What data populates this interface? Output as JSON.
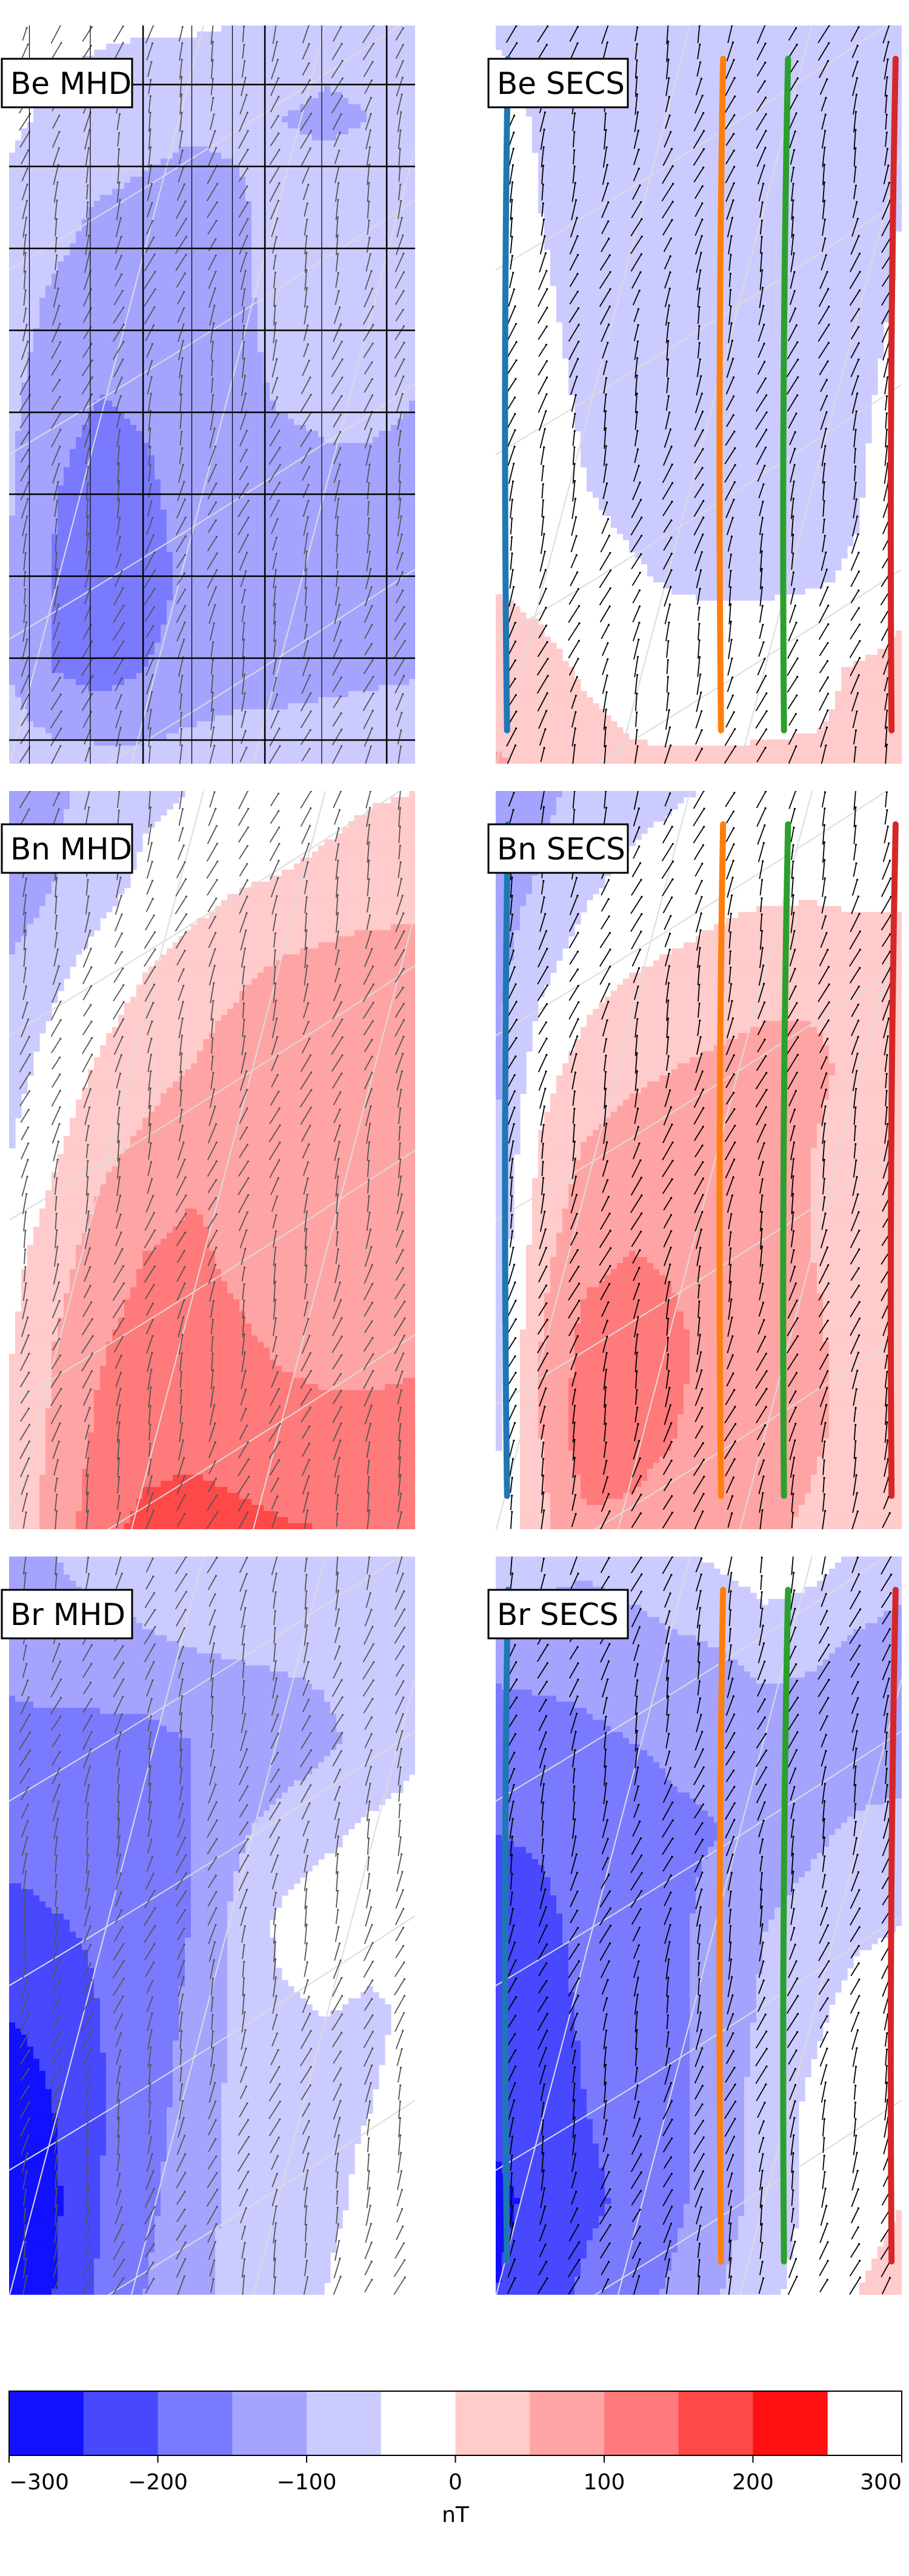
{
  "chart_data": [
    {
      "type": "heatmap",
      "panel": "Be MHD",
      "label": "Be MHD",
      "component": "Be",
      "source": "MHD",
      "level_field": [
        [
          -45,
          -40,
          -45,
          -45,
          -45,
          -50,
          -60,
          -80,
          -80,
          -80
        ],
        [
          -45,
          -55,
          -65,
          -80,
          -90,
          -90,
          -100,
          -110,
          -100,
          -85
        ],
        [
          -55,
          -80,
          -105,
          -115,
          -125,
          -110,
          -80,
          -70,
          -80,
          -85
        ],
        [
          -75,
          -110,
          -125,
          -130,
          -135,
          -120,
          -75,
          -60,
          -70,
          -85
        ],
        [
          -90,
          -125,
          -150,
          -140,
          -130,
          -120,
          -95,
          -90,
          -90,
          -100
        ],
        [
          -95,
          -145,
          -180,
          -160,
          -130,
          -125,
          -120,
          -110,
          -110,
          -110
        ],
        [
          -100,
          -155,
          -185,
          -170,
          -140,
          -125,
          -125,
          -120,
          -115,
          -110
        ],
        [
          -100,
          -150,
          -170,
          -150,
          -130,
          -120,
          -120,
          -115,
          -110,
          -105
        ],
        [
          -75,
          -80,
          -80,
          -85,
          -80,
          -75,
          -70,
          -65,
          -60,
          -55
        ]
      ],
      "grid_lines": true,
      "vectors": true,
      "vector_color": "#555555"
    },
    {
      "type": "heatmap",
      "panel": "Be SECS",
      "label": "Be SECS",
      "component": "Be",
      "source": "SECS",
      "level_field": [
        [
          -55,
          -60,
          -65,
          -70,
          -70,
          -70,
          -70,
          -70,
          -70,
          -65
        ],
        [
          -35,
          -55,
          -65,
          -70,
          -70,
          -70,
          -70,
          -70,
          -70,
          -60
        ],
        [
          -20,
          -50,
          -65,
          -70,
          -70,
          -70,
          -70,
          -70,
          -65,
          -50
        ],
        [
          -15,
          -45,
          -60,
          -70,
          -70,
          -70,
          -70,
          -70,
          -65,
          -45
        ],
        [
          -10,
          -40,
          -55,
          -65,
          -70,
          -70,
          -70,
          -70,
          -60,
          -35
        ],
        [
          -10,
          -30,
          -50,
          -60,
          -65,
          -70,
          -70,
          -65,
          -55,
          -25
        ],
        [
          -5,
          -15,
          -35,
          -45,
          -55,
          -60,
          -60,
          -55,
          -45,
          -10
        ],
        [
          30,
          15,
          -5,
          -15,
          -20,
          -20,
          -15,
          -10,
          5,
          10
        ],
        [
          55,
          40,
          15,
          5,
          5,
          5,
          5,
          5,
          5,
          5
        ]
      ],
      "grid_lines": false,
      "vectors": true,
      "vector_color": "#000000",
      "tracks": [
        {
          "color": "#1f77b4",
          "x": [
            0.03,
            0.028
          ]
        },
        {
          "color": "#ff7f0e",
          "x": [
            0.56,
            0.555
          ]
        },
        {
          "color": "#2ca02c",
          "x": [
            0.72,
            0.71
          ]
        },
        {
          "color": "#d62728",
          "x": [
            0.985,
            0.975
          ]
        }
      ]
    },
    {
      "type": "heatmap",
      "panel": "Bn MHD",
      "label": "Bn MHD",
      "component": "Bn",
      "source": "MHD",
      "level_field": [
        [
          -150,
          -110,
          -80,
          -60,
          -50,
          -45,
          -40,
          -20,
          -5,
          0
        ],
        [
          -140,
          -100,
          -70,
          -40,
          -20,
          -5,
          5,
          15,
          25,
          30
        ],
        [
          -90,
          -60,
          -25,
          0,
          20,
          40,
          60,
          70,
          75,
          75
        ],
        [
          -70,
          -30,
          5,
          30,
          50,
          75,
          90,
          95,
          90,
          80
        ],
        [
          -50,
          -5,
          40,
          65,
          90,
          100,
          75,
          60,
          60,
          70
        ],
        [
          -20,
          30,
          70,
          100,
          110,
          90,
          60,
          50,
          55,
          70
        ],
        [
          -5,
          50,
          95,
          120,
          125,
          110,
          95,
          90,
          90,
          95
        ],
        [
          5,
          60,
          110,
          130,
          135,
          125,
          115,
          110,
          110,
          110
        ],
        [
          20,
          70,
          130,
          165,
          175,
          165,
          155,
          150,
          150,
          150
        ]
      ],
      "grid_lines": false,
      "vectors": true,
      "vector_color": "#555555"
    },
    {
      "type": "heatmap",
      "panel": "Bn SECS",
      "label": "Bn SECS",
      "component": "Bn",
      "source": "SECS",
      "level_field": [
        [
          -130,
          -110,
          -90,
          -70,
          -55,
          -45,
          -35,
          -30,
          -25,
          -20
        ],
        [
          -125,
          -95,
          -60,
          -35,
          -25,
          -15,
          -10,
          -10,
          -15,
          -10
        ],
        [
          -115,
          -60,
          -20,
          0,
          10,
          20,
          30,
          40,
          30,
          20
        ],
        [
          -110,
          -20,
          20,
          40,
          50,
          60,
          70,
          60,
          40,
          25
        ],
        [
          -100,
          10,
          60,
          75,
          80,
          75,
          70,
          50,
          30,
          20
        ],
        [
          -90,
          35,
          85,
          100,
          95,
          80,
          70,
          50,
          30,
          20
        ],
        [
          -70,
          50,
          120,
          130,
          105,
          90,
          80,
          60,
          30,
          15
        ],
        [
          -60,
          50,
          130,
          115,
          100,
          90,
          80,
          60,
          30,
          10
        ],
        [
          -40,
          35,
          90,
          90,
          80,
          70,
          60,
          40,
          20,
          0
        ]
      ],
      "grid_lines": false,
      "vectors": true,
      "vector_color": "#000000",
      "tracks": [
        {
          "color": "#1f77b4",
          "x": [
            0.03,
            0.028
          ]
        },
        {
          "color": "#ff7f0e",
          "x": [
            0.56,
            0.555
          ]
        },
        {
          "color": "#2ca02c",
          "x": [
            0.72,
            0.71
          ]
        },
        {
          "color": "#d62728",
          "x": [
            0.985,
            0.975
          ]
        }
      ]
    },
    {
      "type": "heatmap",
      "panel": "Br MHD",
      "label": "Br MHD",
      "component": "Br",
      "source": "MHD",
      "level_field": [
        [
          -120,
          -100,
          -80,
          -70,
          -60,
          -60,
          -60,
          -70,
          -80,
          -90
        ],
        [
          -140,
          -130,
          -120,
          -110,
          -100,
          -95,
          -90,
          -90,
          -80,
          -60
        ],
        [
          -160,
          -160,
          -165,
          -165,
          -150,
          -140,
          -130,
          -110,
          -85,
          -60
        ],
        [
          -180,
          -175,
          -180,
          -185,
          -150,
          -110,
          -80,
          -60,
          -40,
          -30
        ],
        [
          -220,
          -205,
          -190,
          -190,
          -150,
          -90,
          -40,
          -20,
          -30,
          -40
        ],
        [
          -250,
          -240,
          -200,
          -180,
          -140,
          -90,
          -60,
          -50,
          -60,
          -40
        ],
        [
          -270,
          -250,
          -205,
          -175,
          -130,
          -90,
          -70,
          -60,
          -50,
          -30
        ],
        [
          -285,
          -260,
          -200,
          -165,
          -120,
          -90,
          -75,
          -60,
          -40,
          -20
        ],
        [
          -280,
          -250,
          -195,
          -150,
          -110,
          -90,
          -70,
          -50,
          -20,
          0
        ]
      ],
      "grid_lines": false,
      "vectors": true,
      "vector_color": "#555555"
    },
    {
      "type": "heatmap",
      "panel": "Br SECS",
      "label": "Br SECS",
      "component": "Br",
      "source": "SECS",
      "level_field": [
        [
          -60,
          -80,
          -90,
          -80,
          -60,
          -40,
          -20,
          -30,
          -60,
          -80
        ],
        [
          -130,
          -130,
          -130,
          -120,
          -110,
          -100,
          -80,
          -90,
          -110,
          -120
        ],
        [
          -180,
          -170,
          -160,
          -150,
          -140,
          -140,
          -130,
          -130,
          -130,
          -130
        ],
        [
          -200,
          -195,
          -180,
          -175,
          -160,
          -150,
          -130,
          -110,
          -90,
          -80
        ],
        [
          -220,
          -210,
          -190,
          -175,
          -160,
          -130,
          -100,
          -80,
          -60,
          -50
        ],
        [
          -230,
          -215,
          -195,
          -180,
          -160,
          -125,
          -90,
          -60,
          -30,
          -20
        ],
        [
          -240,
          -225,
          -200,
          -185,
          -160,
          -120,
          -80,
          -40,
          -20,
          -10
        ],
        [
          -260,
          -240,
          -210,
          -190,
          -160,
          -120,
          -80,
          -40,
          -10,
          0
        ],
        [
          -250,
          -225,
          -190,
          -170,
          -140,
          -100,
          -60,
          -30,
          0,
          10
        ]
      ],
      "grid_lines": false,
      "vectors": true,
      "vector_color": "#000000",
      "tracks": [
        {
          "color": "#1f77b4",
          "x": [
            0.03,
            0.028
          ]
        },
        {
          "color": "#ff7f0e",
          "x": [
            0.56,
            0.555
          ]
        },
        {
          "color": "#2ca02c",
          "x": [
            0.72,
            0.71
          ]
        },
        {
          "color": "#d62728",
          "x": [
            0.985,
            0.975
          ]
        }
      ]
    }
  ],
  "colorbar": {
    "label": "nT",
    "vmin": -300,
    "vmax": 300,
    "levels": [
      -300,
      -250,
      -200,
      -150,
      -100,
      -50,
      0,
      50,
      100,
      150,
      200,
      250,
      300
    ],
    "colors": [
      "#1111ff",
      "#4848ff",
      "#7a7aff",
      "#a4a4ff",
      "#cbcbff",
      "#ffffff",
      "#ffcbcb",
      "#ffa4a4",
      "#ff7a7a",
      "#ff4848",
      "#ff1111"
    ],
    "ticks": [
      {
        "value": -300,
        "label": "−300"
      },
      {
        "value": -200,
        "label": "−200"
      },
      {
        "value": -100,
        "label": "−100"
      },
      {
        "value": 0,
        "label": "0"
      },
      {
        "value": 100,
        "label": "100"
      },
      {
        "value": 200,
        "label": "200"
      },
      {
        "value": 300,
        "label": "300"
      }
    ]
  }
}
